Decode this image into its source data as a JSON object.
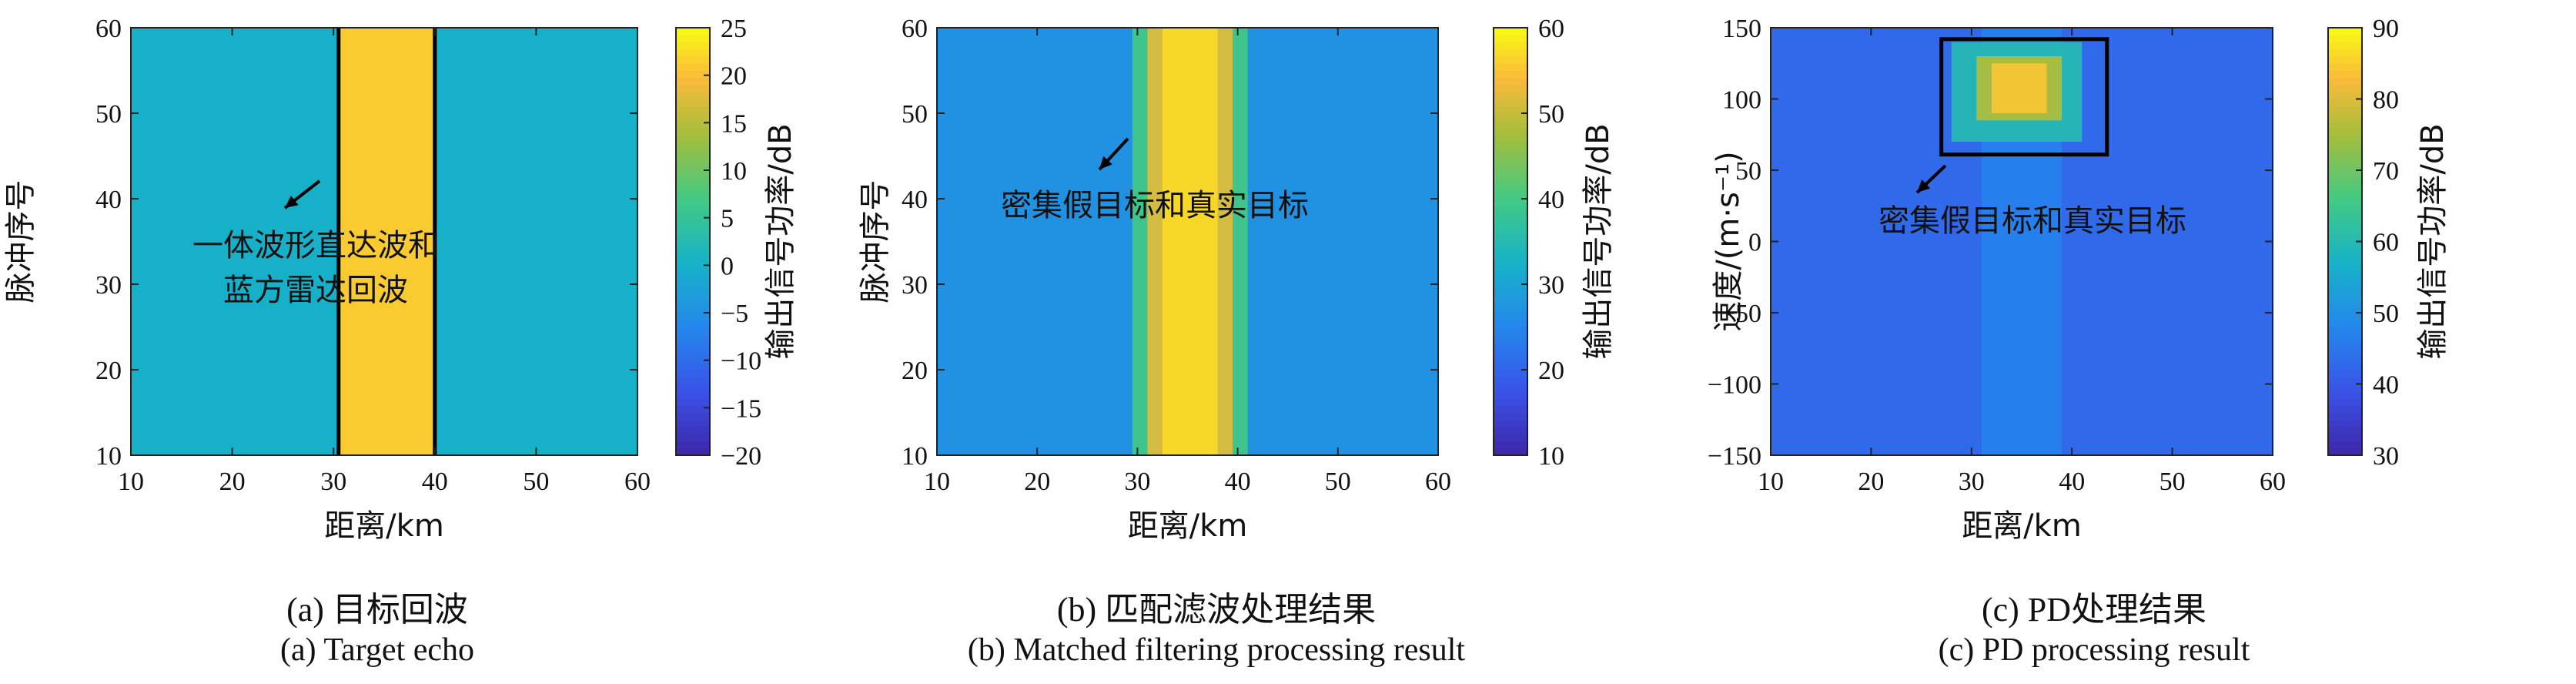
{
  "chart_data": [
    {
      "type": "heatmap",
      "panel": "a",
      "caption_cn": "(a) 目标回波",
      "caption_en": "(a) Target echo",
      "xlabel": "距离/km",
      "ylabel": "脉冲序号",
      "colorbar_label": "输出信号功率/dB",
      "xlim": [
        10,
        60
      ],
      "ylim": [
        10,
        60
      ],
      "xticks": [
        10,
        20,
        30,
        40,
        50,
        60
      ],
      "yticks": [
        10,
        20,
        30,
        40,
        50,
        60
      ],
      "clim": [
        -20,
        25
      ],
      "cticks": [
        -20,
        -15,
        -10,
        -5,
        0,
        5,
        10,
        15,
        20,
        25
      ],
      "background_level_db": 0,
      "bands": [
        {
          "x_range": [
            30.5,
            40
          ],
          "level_db": 21,
          "outlined": true
        }
      ],
      "annotation_lines": [
        "一体波形直达波和",
        "蓝方雷达回波"
      ]
    },
    {
      "type": "heatmap",
      "panel": "b",
      "caption_cn": "(b) 匹配滤波处理结果",
      "caption_en": "(b) Matched filtering processing result",
      "xlabel": "距离/km",
      "ylabel": "脉冲序号",
      "colorbar_label": "输出信号功率/dB",
      "xlim": [
        10,
        60
      ],
      "ylim": [
        10,
        60
      ],
      "xticks": [
        10,
        20,
        30,
        40,
        50,
        60
      ],
      "yticks": [
        10,
        20,
        30,
        40,
        50,
        60
      ],
      "clim": [
        10,
        60
      ],
      "cticks": [
        10,
        20,
        30,
        40,
        50,
        60
      ],
      "background_level_db": 27,
      "bands": [
        {
          "x_range": [
            29.5,
            41
          ],
          "level_db": 40
        },
        {
          "x_range": [
            31,
            39.5
          ],
          "level_db": 52
        },
        {
          "x_range": [
            32.5,
            38
          ],
          "level_db": 57
        }
      ],
      "annotation_lines": [
        "密集假目标和真实目标"
      ]
    },
    {
      "type": "heatmap",
      "panel": "c",
      "caption_cn": "(c) PD处理结果",
      "caption_en": "(c) PD processing result",
      "xlabel": "距离/km",
      "ylabel": "速度/(m·s⁻¹)",
      "colorbar_label": "输出信号功率/dB",
      "xlim": [
        10,
        60
      ],
      "ylim": [
        -150,
        150
      ],
      "xticks": [
        10,
        20,
        30,
        40,
        50,
        60
      ],
      "yticks": [
        -150,
        -100,
        -50,
        0,
        50,
        100,
        150
      ],
      "clim": [
        30,
        90
      ],
      "cticks": [
        30,
        40,
        50,
        60,
        70,
        80,
        90
      ],
      "background_level_db": 43,
      "bands": [
        {
          "x_range": [
            31,
            39
          ],
          "y_range": [
            -150,
            150
          ],
          "level_db": 47
        },
        {
          "x_range": [
            28,
            41
          ],
          "y_range": [
            70,
            140
          ],
          "level_db": 60
        },
        {
          "x_range": [
            30.5,
            39
          ],
          "y_range": [
            85,
            130
          ],
          "level_db": 76
        },
        {
          "x_range": [
            32,
            37.5
          ],
          "y_range": [
            90,
            125
          ],
          "level_db": 84
        }
      ],
      "box": {
        "x_range": [
          27,
          43.5
        ],
        "y_range": [
          61,
          142
        ]
      },
      "annotation_lines": [
        "密集假目标和真实目标"
      ]
    }
  ]
}
